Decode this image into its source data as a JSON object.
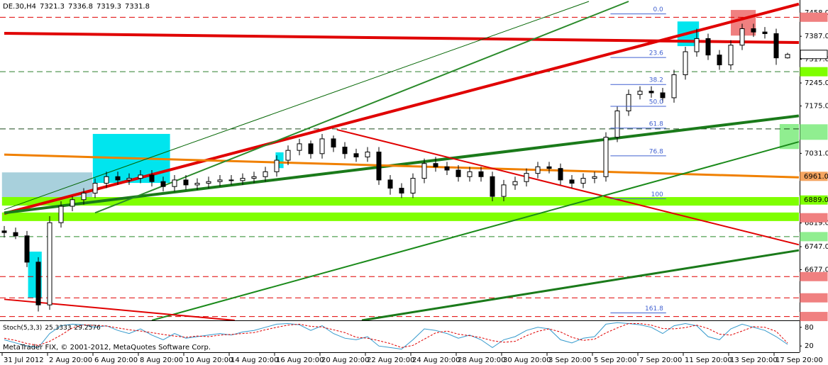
{
  "chart_data": {
    "type": "candlestick",
    "symbol": "DE.30,H4",
    "copyright": "MetaTrader FIX, © 2001-2012, MetaQuotes Software Corp.",
    "categories": [
      "31 Jul 2012",
      null,
      null,
      null,
      "2 Aug 20:00",
      null,
      null,
      null,
      "6 Aug 20:00",
      null,
      null,
      null,
      "8 Aug 20:00",
      null,
      null,
      null,
      "10 Aug 20:00",
      null,
      null,
      null,
      "14 Aug 20:00",
      null,
      null,
      null,
      "16 Aug 20:00",
      null,
      null,
      null,
      "20 Aug 20:00",
      null,
      null,
      null,
      "22 Aug 20:00",
      null,
      null,
      null,
      "24 Aug 20:00",
      null,
      null,
      null,
      "28 Aug 20:00",
      null,
      null,
      null,
      "30 Aug 20:00",
      null,
      null,
      null,
      "3 Sep 20:00",
      null,
      null,
      null,
      "5 Sep 20:00",
      null,
      null,
      null,
      "7 Sep 20:00",
      null,
      null,
      null,
      "11 Sep 20:00",
      null,
      null,
      null,
      "13 Sep 20:00",
      null,
      null,
      null,
      "17 Sep 20:00",
      null
    ],
    "open": [
      6795,
      6790,
      6780,
      6700,
      6570,
      6820,
      6870,
      6890,
      6910,
      6940,
      6960,
      6950,
      6955,
      6965,
      6945,
      6930,
      6950,
      6935,
      6940,
      6945,
      6950,
      6948,
      6955,
      6960,
      6975,
      7010,
      7040,
      7060,
      7030,
      7075,
      7050,
      7030,
      7020,
      7035,
      6950,
      6925,
      6910,
      6955,
      7000,
      6990,
      6980,
      6960,
      6975,
      6960,
      6900,
      6935,
      6945,
      6970,
      6990,
      6985,
      6950,
      6940,
      6955,
      6960,
      7080,
      7160,
      7210,
      7220,
      7215,
      7200,
      7270,
      7340,
      7380,
      7330,
      7300,
      7360,
      7410,
      7400,
      7395,
      7321.3
    ],
    "high": [
      6810,
      6805,
      6795,
      6715,
      6840,
      6885,
      6900,
      6925,
      6955,
      6975,
      6975,
      6970,
      6980,
      6980,
      6960,
      6965,
      6965,
      6955,
      6960,
      6965,
      6965,
      6970,
      6975,
      6990,
      7025,
      7055,
      7075,
      7070,
      7090,
      7085,
      7065,
      7045,
      7050,
      7050,
      6965,
      6940,
      6970,
      7015,
      7020,
      7005,
      6995,
      6990,
      6990,
      6975,
      6950,
      6960,
      6985,
      7005,
      7005,
      7000,
      6965,
      6970,
      6975,
      7095,
      7175,
      7225,
      7235,
      7235,
      7230,
      7285,
      7355,
      7410,
      7395,
      7345,
      7375,
      7425,
      7425,
      7415,
      7410,
      7336.8
    ],
    "low": [
      6775,
      6770,
      6685,
      6550,
      6555,
      6805,
      6855,
      6875,
      6895,
      6925,
      6935,
      6935,
      6940,
      6930,
      6915,
      6915,
      6920,
      6920,
      6925,
      6930,
      6935,
      6935,
      6940,
      6945,
      6960,
      6995,
      7025,
      7015,
      7015,
      7035,
      7015,
      7005,
      7005,
      6935,
      6905,
      6895,
      6895,
      6940,
      6975,
      6965,
      6945,
      6945,
      6945,
      6885,
      6885,
      6920,
      6930,
      6955,
      6970,
      6935,
      6925,
      6925,
      6940,
      6945,
      7065,
      7145,
      7195,
      7200,
      7185,
      7185,
      7255,
      7325,
      7315,
      7285,
      7285,
      7345,
      7385,
      7380,
      7300,
      7319.3
    ],
    "close": [
      6790,
      6780,
      6700,
      6570,
      6820,
      6870,
      6890,
      6910,
      6940,
      6960,
      6950,
      6955,
      6965,
      6945,
      6930,
      6950,
      6935,
      6940,
      6945,
      6950,
      6948,
      6955,
      6960,
      6975,
      7010,
      7040,
      7060,
      7030,
      7075,
      7050,
      7030,
      7020,
      7035,
      6950,
      6925,
      6910,
      6955,
      7000,
      6990,
      6980,
      6960,
      6975,
      6960,
      6900,
      6935,
      6945,
      6970,
      6990,
      6985,
      6950,
      6940,
      6955,
      6960,
      7080,
      7160,
      7210,
      7220,
      7215,
      7200,
      7270,
      7340,
      7380,
      7330,
      7300,
      7360,
      7410,
      7400,
      7395,
      7321.3,
      7331.8
    ],
    "ylim": [
      6523,
      7493
    ],
    "yticks": [
      {
        "value": 7458,
        "label": "7458.0"
      },
      {
        "value": 7387,
        "label": "7387.0"
      },
      {
        "value": 7317,
        "label": "7317.0"
      },
      {
        "value": 7245,
        "label": "7245.0"
      },
      {
        "value": 7175,
        "label": "7175.0"
      },
      {
        "value": 7031,
        "label": "7031.0"
      },
      {
        "value": 6819,
        "label": "6819.0"
      },
      {
        "value": 6747,
        "label": "6747.0"
      },
      {
        "value": 6677,
        "label": "6677.0"
      }
    ],
    "markers": [
      {
        "value": 7444.9,
        "color": "#f08080",
        "line": "#e00000"
      },
      {
        "value": 7331.8,
        "color": "#ffffff"
      },
      {
        "value": 7279.2,
        "color": "#7fff00",
        "line": "#2f7f2f"
      },
      {
        "value": 7105.3,
        "color": "#90ee90",
        "line": "#1a4a1a"
      },
      {
        "value": 7086.1,
        "color": "#90ee90"
      },
      {
        "value": 6961,
        "label": "6961.0",
        "color": "#f4a460"
      },
      {
        "value": 6889,
        "label": "6889.0",
        "color": "#7fff00"
      },
      {
        "value": 6835.1,
        "color": "#f08080"
      },
      {
        "value": 6777.6,
        "color": "#90ee90",
        "line": "#2a8a2a"
      },
      {
        "value": 6656.1,
        "color": "#f08080",
        "line": "#e00000"
      },
      {
        "value": 6591.5,
        "color": "#f08080",
        "line": "#e00000"
      },
      {
        "value": 6534.7,
        "color": "#f08080",
        "line": "#e00000"
      }
    ],
    "zones": [
      {
        "x": [
          -0.2,
          7.75
        ],
        "y": [
          6893,
          6973
        ],
        "color": "#a8d0dc"
      },
      {
        "x": [
          7.8,
          14.6
        ],
        "y": [
          6941,
          7090
        ],
        "color": "#00e5ee"
      },
      {
        "x": [
          2.1,
          3.3
        ],
        "y": [
          6592,
          6732
        ],
        "color": "#00e5ee"
      },
      {
        "x": [
          23.9,
          24.6
        ],
        "y": [
          6986,
          7034
        ],
        "color": "#00e5ee"
      },
      {
        "x": [
          59.3,
          61.2
        ],
        "y": [
          7357,
          7432
        ],
        "color": "#00e5ee"
      },
      {
        "x": [
          64,
          66.2
        ],
        "y": [
          7389,
          7467
        ],
        "color": "#f08080"
      },
      {
        "x": [
          -0.2,
          70
        ],
        "y": [
          6872,
          6898
        ],
        "color": "#7fff00"
      },
      {
        "x": [
          -0.2,
          70
        ],
        "y": [
          6825,
          6851
        ],
        "color": "#7fff00"
      },
      {
        "x": [
          68.3,
          70
        ],
        "y": [
          7044,
          7120
        ],
        "color": "#90ee90"
      }
    ],
    "trendlines": [
      {
        "points": [
          [
            0,
            6848
          ],
          [
            70,
            7485
          ]
        ],
        "color": "#e00000",
        "width": 4
      },
      {
        "points": [
          [
            0,
            7396
          ],
          [
            70,
            7368
          ]
        ],
        "color": "#e00000",
        "width": 4
      },
      {
        "points": [
          [
            0,
            6850
          ],
          [
            70,
            7145
          ]
        ],
        "color": "#1a7a1a",
        "width": 4
      },
      {
        "points": [
          [
            0,
            7027
          ],
          [
            70,
            6958
          ]
        ],
        "color": "#f08000",
        "width": 3
      },
      {
        "points": [
          [
            29.3,
            7103
          ],
          [
            70,
            6753
          ]
        ],
        "color": "#e00000",
        "width": 2
      },
      {
        "points": [
          [
            13,
            6523
          ],
          [
            70,
            7066
          ]
        ],
        "color": "#1a8a1a",
        "width": 2
      },
      {
        "points": [
          [
            0,
            6860
          ],
          [
            51.5,
            7493
          ]
        ],
        "color": "#006400",
        "width": 1
      },
      {
        "points": [
          [
            8,
            6850
          ],
          [
            55,
            7493
          ]
        ],
        "color": "#2a8a2a",
        "width": 2
      },
      {
        "points": [
          [
            31.5,
            6523
          ],
          [
            70,
            6736
          ]
        ],
        "color": "#1a7a1a",
        "width": 3
      },
      {
        "points": [
          [
            0,
            6587
          ],
          [
            20.3,
            6523
          ]
        ],
        "color": "#e00000",
        "width": 2
      }
    ],
    "fibonacci": {
      "high": 7455,
      "low": 6893,
      "x": [
        53.4,
        58.3
      ],
      "color": "#4060d0",
      "levels": [
        {
          "value": 0,
          "label": "0.0"
        },
        23.6,
        38.2,
        {
          "value": 50,
          "label": "50.0"
        },
        61.8,
        76.8,
        100,
        161.8
      ]
    },
    "stochastic": {
      "name": "Stoch(5,3,3)",
      "ylim": [
        0,
        100
      ],
      "yticks": [
        80,
        20
      ],
      "series": [
        {
          "color": "#3399cc",
          "values": [
            40,
            30,
            20,
            15,
            60,
            85,
            90,
            88,
            80,
            85,
            70,
            60,
            75,
            55,
            40,
            60,
            45,
            50,
            55,
            60,
            55,
            65,
            70,
            80,
            90,
            92,
            88,
            70,
            85,
            60,
            45,
            40,
            50,
            20,
            15,
            10,
            40,
            75,
            70,
            60,
            45,
            55,
            40,
            15,
            40,
            50,
            70,
            80,
            75,
            40,
            30,
            45,
            50,
            90,
            95,
            92,
            88,
            80,
            60,
            85,
            92,
            85,
            50,
            40,
            75,
            90,
            80,
            70,
            50,
            25.3333
          ]
        },
        {
          "color": "#e00000",
          "dash": true,
          "values": [
            45,
            38,
            28,
            22,
            35,
            55,
            78,
            88,
            86,
            84,
            78,
            72,
            68,
            63,
            57,
            52,
            48,
            52,
            50,
            55,
            57,
            60,
            63,
            72,
            80,
            87,
            90,
            83,
            81,
            72,
            63,
            48,
            45,
            37,
            28,
            15,
            22,
            42,
            62,
            68,
            58,
            53,
            47,
            37,
            32,
            35,
            53,
            67,
            75,
            65,
            48,
            38,
            42,
            62,
            78,
            92,
            92,
            87,
            76,
            75,
            79,
            87,
            76,
            58,
            55,
            68,
            82,
            80,
            67,
            29.2576
          ]
        }
      ]
    }
  }
}
